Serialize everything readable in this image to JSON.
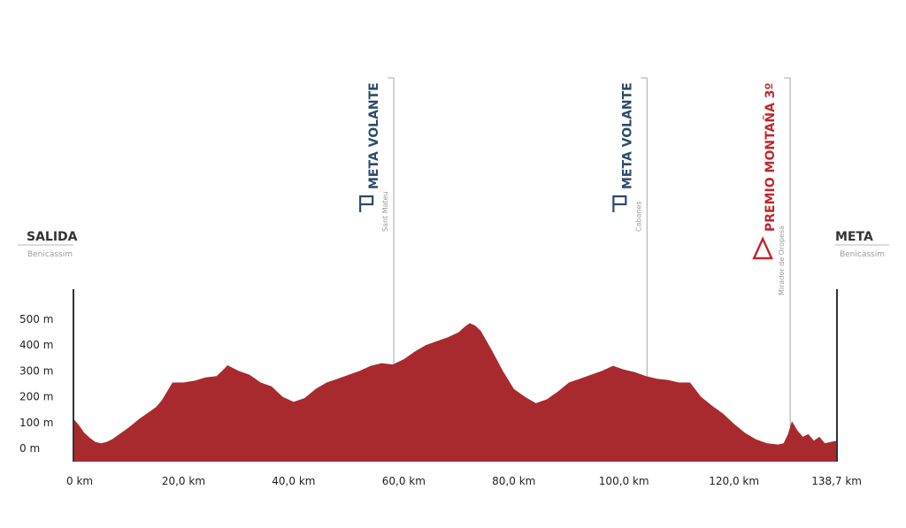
{
  "chart_data": {
    "type": "area",
    "title": "",
    "xlabel": "",
    "ylabel": "",
    "x_unit": "km",
    "y_unit": "m",
    "xlim": [
      0,
      138.7
    ],
    "ylim": [
      0,
      500
    ],
    "fill_color": "#a82a2f",
    "x_ticks": [
      {
        "value": 0,
        "label": "0 km"
      },
      {
        "value": 20,
        "label": "20,0 km"
      },
      {
        "value": 40,
        "label": "40,0 km"
      },
      {
        "value": 60,
        "label": "60,0 km"
      },
      {
        "value": 80,
        "label": "80,0 km"
      },
      {
        "value": 100,
        "label": "100,0 km"
      },
      {
        "value": 120,
        "label": "120,0 km"
      },
      {
        "value": 138.7,
        "label": "138,7 km"
      }
    ],
    "y_ticks": [
      {
        "value": 0,
        "label": "0 m"
      },
      {
        "value": 100,
        "label": "100 m"
      },
      {
        "value": 200,
        "label": "200 m"
      },
      {
        "value": 300,
        "label": "300 m"
      },
      {
        "value": 400,
        "label": "400 m"
      },
      {
        "value": 500,
        "label": "500 m"
      }
    ],
    "profile": {
      "x": [
        0,
        1,
        2,
        3,
        4,
        5,
        6,
        7,
        8,
        10,
        12,
        14,
        15,
        16,
        17,
        18,
        20,
        22,
        24,
        26,
        27,
        28,
        30,
        32,
        34,
        36,
        38,
        40,
        42,
        44,
        46,
        48,
        50,
        52,
        54,
        56,
        58,
        60,
        62,
        64,
        66,
        68,
        70,
        71,
        72,
        73,
        74,
        76,
        78,
        80,
        82,
        84,
        86,
        88,
        90,
        92,
        94,
        96,
        98,
        100,
        102,
        104,
        106,
        108,
        110,
        112,
        114,
        116,
        118,
        120,
        122,
        124,
        126,
        128,
        129,
        129.8,
        130.5,
        131.5,
        132.5,
        133.5,
        134.5,
        135.5,
        136.5,
        137.5,
        138.7
      ],
      "y": [
        115,
        90,
        60,
        40,
        25,
        20,
        25,
        35,
        50,
        80,
        115,
        145,
        160,
        185,
        220,
        255,
        255,
        262,
        275,
        280,
        300,
        322,
        300,
        285,
        255,
        240,
        200,
        180,
        195,
        230,
        255,
        270,
        285,
        300,
        320,
        330,
        325,
        345,
        375,
        400,
        415,
        430,
        450,
        470,
        485,
        475,
        455,
        380,
        300,
        230,
        200,
        175,
        190,
        220,
        255,
        270,
        285,
        300,
        320,
        305,
        295,
        280,
        270,
        265,
        255,
        255,
        200,
        165,
        135,
        95,
        60,
        35,
        20,
        15,
        20,
        55,
        105,
        70,
        45,
        55,
        30,
        45,
        20,
        25,
        30
      ]
    },
    "start": {
      "km": 0,
      "name": "SALIDA",
      "place": "Benicàssim"
    },
    "finish": {
      "km": 138.7,
      "name": "META",
      "place": "Benicàssim"
    },
    "markers": [
      {
        "km": 58.2,
        "title": "META VOLANTE",
        "place": "Sant Mateu",
        "kind": "sprint",
        "color": "#2c4a6b"
      },
      {
        "km": 104.2,
        "title": "META VOLANTE",
        "place": "Cabanes",
        "kind": "sprint",
        "color": "#2c4a6b"
      },
      {
        "km": 130.2,
        "title": "PREMIO MONTAÑA 3º",
        "place": "Mirador de Oropesa",
        "kind": "mountain",
        "color": "#c0272d"
      }
    ]
  }
}
